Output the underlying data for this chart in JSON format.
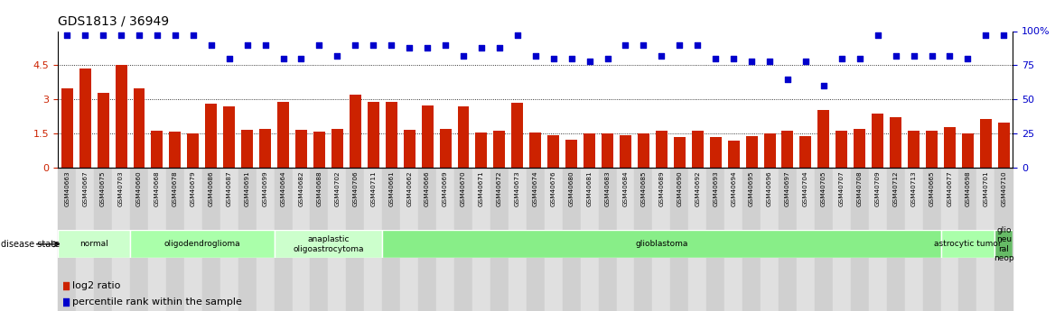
{
  "title": "GDS1813 / 36949",
  "samples": [
    "GSM40663",
    "GSM40667",
    "GSM40675",
    "GSM40703",
    "GSM40660",
    "GSM40668",
    "GSM40678",
    "GSM40679",
    "GSM40686",
    "GSM40687",
    "GSM40691",
    "GSM40699",
    "GSM40664",
    "GSM40682",
    "GSM40688",
    "GSM40702",
    "GSM40706",
    "GSM40711",
    "GSM40661",
    "GSM40662",
    "GSM40666",
    "GSM40669",
    "GSM40670",
    "GSM40671",
    "GSM40672",
    "GSM40673",
    "GSM40674",
    "GSM40676",
    "GSM40680",
    "GSM40681",
    "GSM40683",
    "GSM40684",
    "GSM40685",
    "GSM40689",
    "GSM40690",
    "GSM40692",
    "GSM40693",
    "GSM40694",
    "GSM40695",
    "GSM40696",
    "GSM40697",
    "GSM40704",
    "GSM40705",
    "GSM40707",
    "GSM40708",
    "GSM40709",
    "GSM40712",
    "GSM40713",
    "GSM40665",
    "GSM40677",
    "GSM40698",
    "GSM40701",
    "GSM40710"
  ],
  "log2_ratio": [
    3.5,
    4.35,
    3.3,
    4.5,
    3.5,
    1.65,
    1.58,
    1.5,
    2.8,
    2.7,
    1.68,
    1.7,
    2.9,
    1.68,
    1.58,
    1.7,
    3.2,
    2.9,
    2.9,
    1.68,
    2.75,
    1.7,
    2.7,
    1.55,
    1.62,
    2.85,
    1.55,
    1.42,
    1.22,
    1.5,
    1.52,
    1.42,
    1.5,
    1.65,
    1.35,
    1.65,
    1.35,
    1.2,
    1.38,
    1.5,
    1.62,
    1.38,
    2.55,
    1.65,
    1.7,
    2.4,
    2.22,
    1.65,
    1.62,
    1.78,
    1.52,
    2.15,
    2.0
  ],
  "percentile": [
    97,
    97,
    97,
    97,
    97,
    97,
    97,
    97,
    90,
    80,
    90,
    90,
    80,
    80,
    90,
    82,
    90,
    90,
    90,
    88,
    88,
    90,
    82,
    88,
    88,
    97,
    82,
    80,
    80,
    78,
    80,
    90,
    90,
    82,
    90,
    90,
    80,
    80,
    78,
    78,
    65,
    78,
    60,
    80,
    80,
    97,
    82,
    82,
    82,
    82,
    80,
    97,
    97
  ],
  "disease_groups": [
    {
      "label": "normal",
      "start": 0,
      "end": 4,
      "color": "#ccffcc"
    },
    {
      "label": "oligodendroglioma",
      "start": 4,
      "end": 12,
      "color": "#aaffaa"
    },
    {
      "label": "anaplastic\noligoastrocytoma",
      "start": 12,
      "end": 18,
      "color": "#ccffcc"
    },
    {
      "label": "glioblastoma",
      "start": 18,
      "end": 49,
      "color": "#88ee88"
    },
    {
      "label": "astrocytic tumor",
      "start": 49,
      "end": 52,
      "color": "#aaffaa"
    },
    {
      "label": "glio\nneu\nral\nneop",
      "start": 52,
      "end": 53,
      "color": "#66bb66"
    }
  ],
  "bar_color": "#cc2200",
  "dot_color": "#0000cc",
  "left_ylim": [
    0,
    6
  ],
  "left_yticks": [
    0,
    1.5,
    3.0,
    4.5
  ],
  "right_ylim": [
    0,
    100
  ],
  "right_yticks": [
    0,
    25,
    50,
    75,
    100
  ],
  "bg_colors": [
    "#d0d0d0",
    "#e0e0e0"
  ]
}
